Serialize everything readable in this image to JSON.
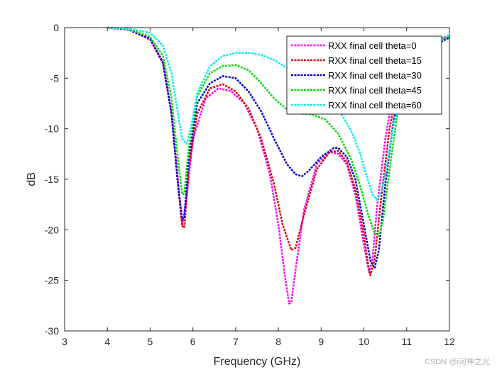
{
  "chart_data": {
    "type": "line",
    "title": "",
    "xlabel": "Frequency (GHz)",
    "ylabel": "dB",
    "xlim": [
      3,
      12
    ],
    "ylim": [
      -30,
      0
    ],
    "xticks": [
      3,
      4,
      5,
      6,
      7,
      8,
      9,
      10,
      11,
      12
    ],
    "yticks": [
      0,
      -5,
      -10,
      -15,
      -20,
      -25,
      -30
    ],
    "grid": false,
    "legend_position": "top-right",
    "series": [
      {
        "name": "RXX final cell theta=0",
        "color": "#ff00ff",
        "x": [
          4.0,
          4.5,
          5.0,
          5.3,
          5.5,
          5.65,
          5.75,
          5.85,
          6.0,
          6.3,
          6.6,
          6.9,
          7.2,
          7.5,
          7.8,
          8.0,
          8.15,
          8.25,
          8.3,
          8.4,
          8.6,
          8.9,
          9.2,
          9.4,
          9.6,
          9.8,
          10.0,
          10.12,
          10.2,
          10.3,
          10.5,
          10.7,
          11.0,
          11.5,
          12.0
        ],
        "y": [
          0,
          -0.2,
          -1.2,
          -3.5,
          -8.5,
          -15,
          -19.6,
          -17,
          -11,
          -7,
          -6,
          -6.3,
          -7.5,
          -10,
          -14.5,
          -19.5,
          -24.5,
          -27.3,
          -27.2,
          -24,
          -18,
          -13.5,
          -12.3,
          -12.5,
          -13.5,
          -16.5,
          -21.5,
          -24.2,
          -23,
          -18,
          -11,
          -6,
          -3,
          -1.5,
          -0.9
        ]
      },
      {
        "name": "RXX final cell theta=15",
        "color": "#dd0000",
        "x": [
          4.0,
          4.5,
          5.0,
          5.3,
          5.5,
          5.65,
          5.75,
          5.8,
          5.9,
          6.1,
          6.4,
          6.7,
          7.0,
          7.3,
          7.6,
          7.9,
          8.1,
          8.3,
          8.4,
          8.6,
          8.9,
          9.2,
          9.4,
          9.6,
          9.8,
          10.0,
          10.1,
          10.15,
          10.25,
          10.4,
          10.6,
          10.8,
          11.0,
          11.5,
          12.0
        ],
        "y": [
          0,
          -0.2,
          -1.1,
          -3.4,
          -8.5,
          -15.5,
          -19.6,
          -19.8,
          -14,
          -8.5,
          -6,
          -5.6,
          -6.3,
          -8,
          -11,
          -15.5,
          -19.5,
          -22,
          -21.8,
          -18.5,
          -14,
          -12.3,
          -12.2,
          -13.3,
          -16,
          -20.5,
          -23.5,
          -24.5,
          -23,
          -17,
          -10,
          -5.5,
          -3,
          -1.4,
          -0.8
        ]
      },
      {
        "name": "RXX final cell theta=30",
        "color": "#0000cc",
        "x": [
          4.0,
          4.5,
          5.0,
          5.3,
          5.5,
          5.65,
          5.75,
          5.8,
          5.9,
          6.1,
          6.4,
          6.7,
          7.0,
          7.3,
          7.6,
          7.9,
          8.2,
          8.4,
          8.55,
          8.7,
          9.0,
          9.3,
          9.4,
          9.6,
          9.8,
          10.0,
          10.15,
          10.25,
          10.35,
          10.5,
          10.7,
          11.0,
          11.5,
          12.0
        ],
        "y": [
          0,
          -0.2,
          -1.1,
          -3.5,
          -8.5,
          -15.5,
          -19,
          -18.8,
          -13,
          -7.5,
          -5.5,
          -4.8,
          -5,
          -6.3,
          -8.3,
          -11,
          -13.5,
          -14.5,
          -14.7,
          -14.2,
          -12.8,
          -11.9,
          -11.9,
          -12.8,
          -15,
          -19.5,
          -23,
          -23.8,
          -22,
          -15.5,
          -9,
          -4.5,
          -2,
          -1.0
        ]
      },
      {
        "name": "RXX final cell theta=45",
        "color": "#00dd00",
        "x": [
          4.0,
          4.5,
          5.0,
          5.3,
          5.5,
          5.65,
          5.75,
          5.8,
          5.9,
          6.1,
          6.4,
          6.7,
          7.0,
          7.3,
          7.6,
          7.9,
          8.2,
          8.5,
          8.8,
          9.1,
          9.4,
          9.7,
          9.9,
          10.1,
          10.25,
          10.35,
          10.45,
          10.6,
          10.8,
          11.0,
          11.5,
          12.0
        ],
        "y": [
          0,
          -0.15,
          -0.9,
          -2.8,
          -7,
          -13,
          -16.5,
          -16.4,
          -12,
          -6.8,
          -4.5,
          -3.8,
          -3.7,
          -4.2,
          -5.5,
          -7,
          -8.1,
          -8.5,
          -8.6,
          -9.1,
          -10.5,
          -13,
          -15.5,
          -18.5,
          -20.3,
          -20.6,
          -19,
          -14,
          -8,
          -4,
          -1.8,
          -0.9
        ]
      },
      {
        "name": "RXX final cell theta=60",
        "color": "#00eeee",
        "x": [
          4.0,
          4.5,
          5.0,
          5.3,
          5.5,
          5.65,
          5.75,
          5.85,
          5.95,
          6.1,
          6.4,
          6.7,
          7.0,
          7.3,
          7.6,
          7.9,
          8.2,
          8.5,
          8.8,
          9.1,
          9.4,
          9.7,
          9.9,
          10.05,
          10.2,
          10.3,
          10.4,
          10.5,
          10.7,
          11.0,
          11.5,
          12.0
        ],
        "y": [
          0,
          -0.1,
          -0.5,
          -1.8,
          -4.5,
          -8.5,
          -11,
          -11.5,
          -10,
          -6.5,
          -3.8,
          -2.8,
          -2.5,
          -2.5,
          -2.7,
          -3.2,
          -4,
          -4.8,
          -5.5,
          -6.5,
          -8,
          -10.2,
          -12.3,
          -14.5,
          -16.5,
          -17,
          -16.3,
          -14.5,
          -9.5,
          -5,
          -2,
          -0.7
        ]
      }
    ]
  },
  "watermark": "CSDN @i河神之光"
}
